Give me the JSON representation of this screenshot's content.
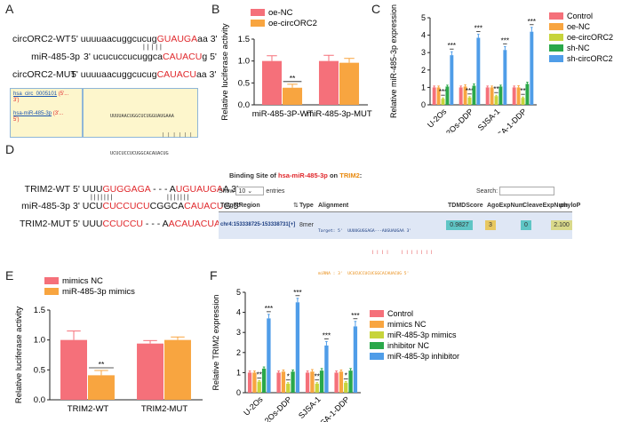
{
  "panels": {
    "A": "A",
    "B": "B",
    "C": "C",
    "D": "D",
    "E": "E",
    "F": "F"
  },
  "panelA": {
    "rows": [
      {
        "name": "circORC2-WT",
        "pre": "5' uuuuaacuggcucug",
        "hl": "GUAUGA",
        "post": "aa 3'"
      },
      {
        "name": "miR-485-3p",
        "pre": "3' ucucuccucuggca",
        "hl": "CAUACU",
        "post": "g 5'"
      },
      {
        "name": "circORC2-MUT",
        "pre": "5' uuuuaacuggcucug",
        "hl": "CAUACU",
        "post": "aa 3'"
      }
    ],
    "pairs": "| | | | |",
    "box": {
      "left_top": "hsa_circ_0005101",
      "left_top_end": "(5'...",
      "left_top_3": "3')",
      "left_bot": "hsa-miR-485-3p",
      "left_bot_end": "(3'...",
      "left_bot_5": "5')",
      "seq1": "UUUUAACUGGCUCUGGUAUGAAA",
      "pairs": "| | | | | |",
      "seq2": "UCUCUCCUCUGGCACAUACUG"
    }
  },
  "panelD_left": {
    "rows": [
      {
        "name": "TRIM2-WT",
        "segs": [
          [
            "5' UUU",
            ""
          ],
          [
            "GUGGAGA",
            "r"
          ],
          [
            " - - - A",
            ""
          ],
          [
            "UGUAUGA",
            "r"
          ],
          [
            "A 3'",
            ""
          ]
        ]
      },
      {
        "name": "miR-485-3p",
        "segs": [
          [
            "3' UCU",
            ""
          ],
          [
            "CUCCUCU",
            "r"
          ],
          [
            "CGGCA",
            ""
          ],
          [
            "CAUACU",
            "r"
          ],
          [
            "G 5'",
            ""
          ]
        ]
      },
      {
        "name": "TRIM2-MUT",
        "segs": [
          [
            "5' UUU",
            ""
          ],
          [
            "CCUCCU",
            "r"
          ],
          [
            " - - - A",
            ""
          ],
          [
            "ACAUACUA",
            "r"
          ],
          [
            " 3'",
            ""
          ]
        ]
      }
    ],
    "pairs1": "| | | | | | |",
    "pairs2": "| | | | | | |"
  },
  "panelD_table": {
    "title_pre": "Binding Site of",
    "title_mir": "hsa-miR-485-3p",
    "title_on": "on",
    "title_gene": "TRIM2",
    "title_end": ":",
    "show": "Show",
    "show_value": "10",
    "entries": "entries",
    "search": "Search:",
    "headers": [
      "TargetRegion",
      "Type",
      "Alignment",
      "TDMDScore",
      "AgoExpNum",
      "CleaveExpNum",
      "phyloP"
    ],
    "row": {
      "region": "chr4:153338725-153338731[+]",
      "type": "8mer",
      "target_line": "Target: 5'  UUUUGUGGAGA---AUGUAUGAA 3'",
      "pair_line": "| | | |     | | | | | | |",
      "mirna_line": "miRNA : 3'  UCUCUCCUCUCGGCACAUACUG 5'",
      "tdmd": "0.9827",
      "ago": "3",
      "cleave": "0",
      "phylop": "2.100"
    }
  },
  "chart_data": [
    {
      "panel": "B",
      "type": "bar",
      "title": "",
      "ylabel": "Relative luciferase activity",
      "xlabel": "",
      "ylim": [
        0,
        1.5
      ],
      "yticks": [
        "0.0",
        "0.5",
        "1.0",
        "1.5"
      ],
      "categories": [
        "miR-485-3P-WT",
        "miR-485-3p-MUT"
      ],
      "series": [
        {
          "name": "oe-NC",
          "color": "#f5707a",
          "values": [
            1.0,
            1.0
          ],
          "errors": [
            0.12,
            0.13
          ]
        },
        {
          "name": "oe-circORC2",
          "color": "#f8a540",
          "values": [
            0.39,
            0.96
          ],
          "errors": [
            0.08,
            0.1
          ]
        }
      ],
      "annotations": [
        {
          "category": 0,
          "series": 1,
          "text": "**"
        }
      ],
      "legend_position": "top"
    },
    {
      "panel": "C",
      "type": "bar",
      "title": "",
      "ylabel": "Relative miR-485-3p expression",
      "xlabel": "",
      "ylim": [
        0,
        5
      ],
      "yticks": [
        "0",
        "1",
        "2",
        "3",
        "4",
        "5"
      ],
      "categories": [
        "U-2Os",
        "U-2Os-DDP",
        "SJSA-1",
        "SJSA-1-DDP"
      ],
      "series": [
        {
          "name": "Control",
          "color": "#f5707a",
          "values": [
            1.0,
            1.0,
            1.0,
            1.0
          ],
          "errors": [
            0.08,
            0.08,
            0.08,
            0.08
          ]
        },
        {
          "name": "oe-NC",
          "color": "#f8a540",
          "values": [
            1.0,
            1.05,
            1.0,
            1.0
          ],
          "errors": [
            0.08,
            0.1,
            0.08,
            0.1
          ]
        },
        {
          "name": "oe-circORC2",
          "color": "#c7d43b",
          "values": [
            0.35,
            0.42,
            0.5,
            0.4
          ],
          "errors": [
            0.05,
            0.05,
            0.05,
            0.05
          ]
        },
        {
          "name": "sh-NC",
          "color": "#2aa84a",
          "values": [
            1.05,
            1.1,
            1.05,
            1.2
          ],
          "errors": [
            0.08,
            0.1,
            0.08,
            0.1
          ]
        },
        {
          "name": "sh-circORC2",
          "color": "#4f9de8",
          "values": [
            2.85,
            3.85,
            3.15,
            4.2
          ],
          "errors": [
            0.2,
            0.2,
            0.2,
            0.25
          ]
        }
      ],
      "annotations": [
        {
          "category": 0,
          "series": 2,
          "text": "***"
        },
        {
          "category": 0,
          "series": 4,
          "text": "***"
        },
        {
          "category": 1,
          "series": 2,
          "text": "***"
        },
        {
          "category": 1,
          "series": 4,
          "text": "***"
        },
        {
          "category": 2,
          "series": 2,
          "text": "**"
        },
        {
          "category": 2,
          "series": 4,
          "text": "***"
        },
        {
          "category": 3,
          "series": 2,
          "text": "**"
        },
        {
          "category": 3,
          "series": 4,
          "text": "***"
        }
      ],
      "legend_position": "right"
    },
    {
      "panel": "E",
      "type": "bar",
      "title": "",
      "ylabel": "Relative luciferase activity",
      "xlabel": "",
      "ylim": [
        0,
        1.5
      ],
      "yticks": [
        "0.0",
        "0.5",
        "1.0",
        "1.5"
      ],
      "categories": [
        "TRIM2-WT",
        "TRIM2-MUT"
      ],
      "series": [
        {
          "name": "mimics NC",
          "color": "#f5707a",
          "values": [
            1.0,
            0.94
          ],
          "errors": [
            0.15,
            0.05
          ]
        },
        {
          "name": "miR-485-3p mimics",
          "color": "#f8a540",
          "values": [
            0.41,
            1.0
          ],
          "errors": [
            0.08,
            0.05
          ]
        }
      ],
      "annotations": [
        {
          "category": 0,
          "series": 1,
          "text": "**"
        }
      ],
      "legend_position": "top"
    },
    {
      "panel": "F",
      "type": "bar",
      "title": "",
      "ylabel": "Relative TRIM2 expression",
      "xlabel": "",
      "ylim": [
        0,
        5
      ],
      "yticks": [
        "0",
        "1",
        "2",
        "3",
        "4",
        "5"
      ],
      "categories": [
        "U-2Os",
        "U-2Os-DDP",
        "SJSA-1",
        "SJSA-1-DDP"
      ],
      "series": [
        {
          "name": "Control",
          "color": "#f5707a",
          "values": [
            1.0,
            1.0,
            1.0,
            1.0
          ],
          "errors": [
            0.08,
            0.08,
            0.08,
            0.08
          ]
        },
        {
          "name": "mimics NC",
          "color": "#f8a540",
          "values": [
            1.0,
            1.05,
            1.05,
            1.05
          ],
          "errors": [
            0.08,
            0.08,
            0.1,
            0.08
          ]
        },
        {
          "name": "miR-485-3p mimics",
          "color": "#c7d43b",
          "values": [
            0.55,
            0.45,
            0.45,
            0.5
          ],
          "errors": [
            0.05,
            0.05,
            0.05,
            0.05
          ]
        },
        {
          "name": "inhibitor NC",
          "color": "#2aa84a",
          "values": [
            1.2,
            1.05,
            1.1,
            1.1
          ],
          "errors": [
            0.08,
            0.08,
            0.1,
            0.1
          ]
        },
        {
          "name": "miR-485-3p inhibitor",
          "color": "#4f9de8",
          "values": [
            3.7,
            4.5,
            2.35,
            3.3
          ],
          "errors": [
            0.2,
            0.2,
            0.2,
            0.25
          ]
        }
      ],
      "annotations": [
        {
          "category": 0,
          "series": 2,
          "text": "**"
        },
        {
          "category": 0,
          "series": 4,
          "text": "***"
        },
        {
          "category": 1,
          "series": 2,
          "text": "*"
        },
        {
          "category": 1,
          "series": 4,
          "text": "***"
        },
        {
          "category": 2,
          "series": 2,
          "text": "**"
        },
        {
          "category": 2,
          "series": 4,
          "text": "***"
        },
        {
          "category": 3,
          "series": 2,
          "text": "*"
        },
        {
          "category": 3,
          "series": 4,
          "text": "***"
        }
      ],
      "legend_position": "right"
    }
  ]
}
